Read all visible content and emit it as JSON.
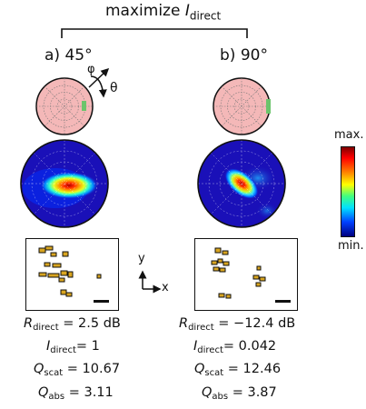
{
  "title": {
    "prefix": "maximize ",
    "var": "I",
    "sub": "direct"
  },
  "panels": [
    {
      "label": "a) 45°",
      "angle_symbols": {
        "phi": "φ",
        "theta": "θ"
      },
      "metrics": {
        "r_direct": {
          "var": "R",
          "sub": "direct",
          "value": " = 2.5 dB"
        },
        "i_direct": {
          "var": "I",
          "sub": "direct",
          "value": "= 1"
        },
        "q_scat": {
          "var": "Q",
          "sub": "scat",
          "value": " = 10.67"
        },
        "q_abs": {
          "var": "Q",
          "sub": "abs",
          "value": " = 3.11"
        }
      }
    },
    {
      "label": "b) 90°",
      "metrics": {
        "r_direct": {
          "var": "R",
          "sub": "direct",
          "value": " = −12.4 dB"
        },
        "i_direct": {
          "var": "I",
          "sub": "direct",
          "value": "= 0.042"
        },
        "q_scat": {
          "var": "Q",
          "sub": "scat",
          "value": " = 12.46"
        },
        "q_abs": {
          "var": "Q",
          "sub": "abs",
          "value": " = 3.87"
        }
      }
    }
  ],
  "axes_glyph": {
    "y": "y",
    "x": "x"
  },
  "colorbar": {
    "max_label": "max.",
    "min_label": "min."
  },
  "colors": {
    "polar_bg": "#f4b8b8",
    "highlight": "#6cc46c",
    "gold": "#d9a520",
    "map_bg": "#1a10b8"
  }
}
